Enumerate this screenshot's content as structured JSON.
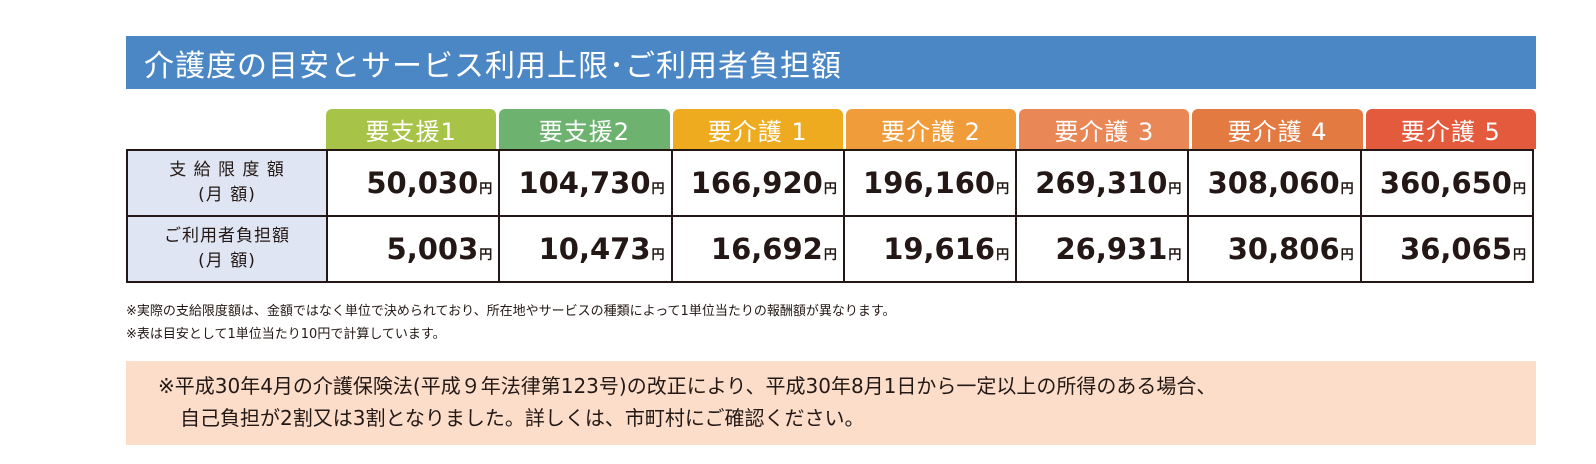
{
  "title": "介護度の目安とサービス利用上限･ご利用者負担額",
  "levels": [
    {
      "label": "要支援1",
      "color": "#a8c448"
    },
    {
      "label": "要支援2",
      "color": "#6db36f"
    },
    {
      "label": "要介護 1",
      "color": "#efab20"
    },
    {
      "label": "要介護 2",
      "color": "#f09c3a"
    },
    {
      "label": "要介護 3",
      "color": "#ea8757"
    },
    {
      "label": "要介護 4",
      "color": "#e27a41"
    },
    {
      "label": "要介護 5",
      "color": "#e45a3c"
    }
  ],
  "rows": [
    {
      "label_line1": "支 給 限 度 額",
      "label_line2": "(月 額)",
      "values": [
        "50,030",
        "104,730",
        "166,920",
        "196,160",
        "269,310",
        "308,060",
        "360,650"
      ]
    },
    {
      "label_line1": "ご利用者負担額",
      "label_line2": "(月 額)",
      "values": [
        "5,003",
        "10,473",
        "16,692",
        "19,616",
        "26,931",
        "30,806",
        "36,065"
      ]
    }
  ],
  "unit": "円",
  "notes": [
    "※実際の支給限度額は、金額ではなく単位で決められており、所在地やサービスの種類によって1単位当たりの報酬額が異なります。",
    "※表は目安として1単位当たり10円で計算しています。"
  ],
  "notice": {
    "line1": "※平成30年4月の介護保険法(平成９年法律第123号)の改正により、平成30年8月1日から一定以上の所得のある場合、",
    "line2": "自己負担が2割又は3割となりました。詳しくは、市町村にご確認ください。"
  }
}
